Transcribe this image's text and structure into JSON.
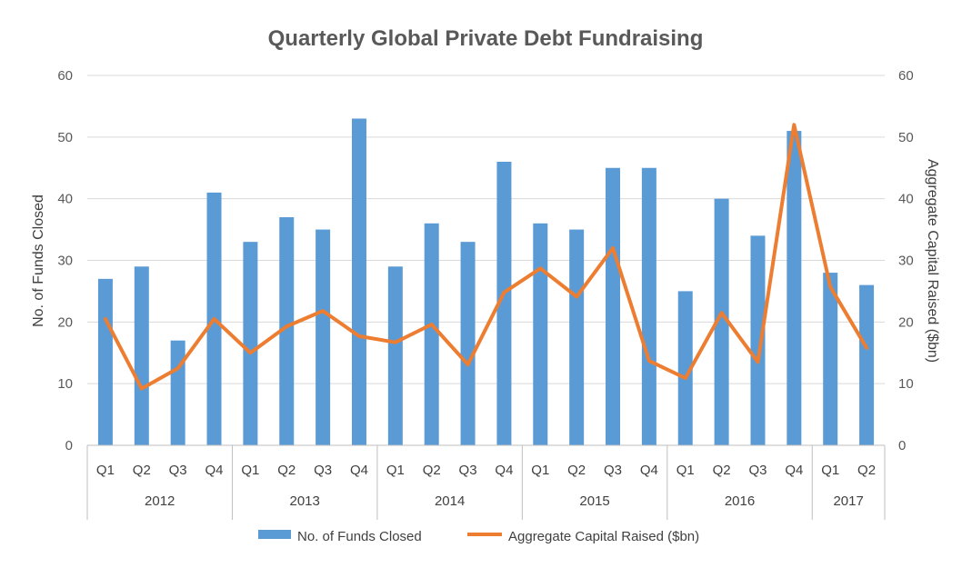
{
  "chart_data": {
    "type": "bar",
    "title": "Quarterly Global Private Debt Fundraising",
    "ylabel": "No. of Funds Closed",
    "y2label": "Aggregate Capital Raised ($bn)",
    "ylim": [
      0,
      60
    ],
    "y2lim": [
      0,
      60
    ],
    "yticks": [
      "0",
      "10",
      "20",
      "30",
      "40",
      "50",
      "60"
    ],
    "y2ticks": [
      "0",
      "10",
      "20",
      "30",
      "40",
      "50",
      "60"
    ],
    "grid": true,
    "legend_position": "bottom",
    "years": [
      {
        "label": "2012",
        "quarters": 4
      },
      {
        "label": "2013",
        "quarters": 4
      },
      {
        "label": "2014",
        "quarters": 4
      },
      {
        "label": "2015",
        "quarters": 4
      },
      {
        "label": "2016",
        "quarters": 4
      },
      {
        "label": "2017",
        "quarters": 2
      }
    ],
    "categories": [
      "Q1",
      "Q2",
      "Q3",
      "Q4",
      "Q1",
      "Q2",
      "Q3",
      "Q4",
      "Q1",
      "Q2",
      "Q3",
      "Q4",
      "Q1",
      "Q2",
      "Q3",
      "Q4",
      "Q1",
      "Q2",
      "Q3",
      "Q4",
      "Q1",
      "Q2"
    ],
    "series": [
      {
        "name": "No. of Funds Closed",
        "type": "bar",
        "axis": "left",
        "color": "#5B9BD5",
        "values": [
          27,
          29,
          17,
          41,
          33,
          37,
          35,
          53,
          29,
          36,
          33,
          46,
          36,
          35,
          45,
          45,
          25,
          40,
          34,
          51,
          28,
          26
        ]
      },
      {
        "name": "Aggregate Capital Raised ($bn)",
        "type": "line",
        "axis": "right",
        "color": "#ED7D31",
        "values": [
          20.5,
          9.2,
          12.5,
          20.5,
          15.0,
          19.3,
          21.8,
          17.7,
          16.7,
          19.6,
          13.1,
          24.8,
          28.7,
          24.1,
          32.0,
          13.7,
          10.9,
          21.5,
          13.5,
          52.0,
          25.7,
          15.8
        ]
      }
    ]
  }
}
